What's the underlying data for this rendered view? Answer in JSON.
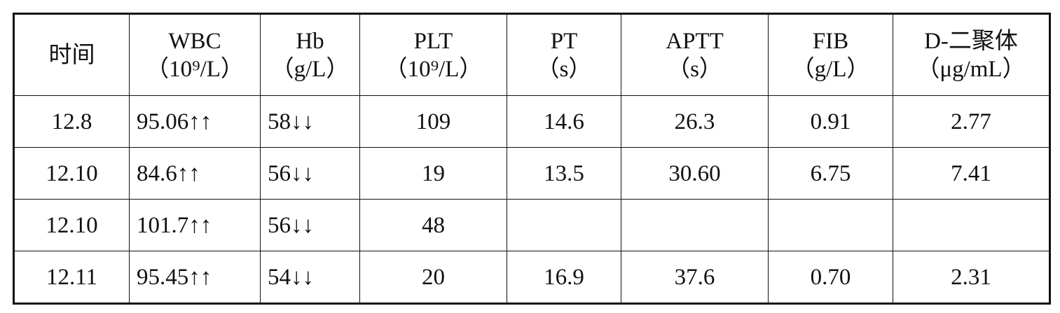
{
  "table": {
    "header": [
      {
        "name": "时间"
      },
      {
        "name": "WBC",
        "unit": "（10⁹/L）"
      },
      {
        "name": "Hb",
        "unit": "（g/L）"
      },
      {
        "name": "PLT",
        "unit": "（10⁹/L）"
      },
      {
        "name": "PT",
        "unit": "（s）"
      },
      {
        "name": "APTT",
        "unit": "（s）"
      },
      {
        "name": "FIB",
        "unit": "（g/L）"
      },
      {
        "name": "D-二聚体",
        "unit": "（μg/mL）"
      }
    ],
    "rows": [
      [
        "12.8",
        "95.06↑↑",
        "58↓↓",
        "109",
        "14.6",
        "26.3",
        "0.91",
        "2.77"
      ],
      [
        "12.10",
        "84.6↑↑",
        "56↓↓",
        "19",
        "13.5",
        "30.60",
        "6.75",
        "7.41"
      ],
      [
        "12.10",
        "101.7↑↑",
        "56↓↓",
        "48"
      ],
      [
        "12.11",
        "95.45↑↑",
        "54↓↓",
        "20",
        "16.9",
        "37.6",
        "0.70",
        "2.31"
      ]
    ]
  }
}
